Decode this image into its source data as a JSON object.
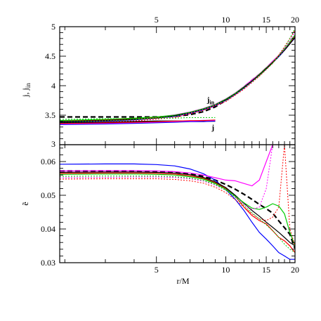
{
  "chart_data": [
    {
      "type": "line",
      "panel": "top",
      "ylabel": "j, j_in",
      "ylabel_main": "j, j",
      "ylabel_sub": "in",
      "xscale": "log",
      "xlim": [
        1.9,
        20
      ],
      "ylim": [
        3,
        5
      ],
      "xticks": [
        5,
        10,
        15,
        20
      ],
      "xtick_labels": [
        "5",
        "10",
        "15",
        "20"
      ],
      "yticks": [
        3,
        3.5,
        4,
        4.5,
        5
      ],
      "ytick_labels": [
        "3",
        "3.5",
        "4",
        "4.5",
        "5"
      ],
      "annotations": [
        {
          "text_main": "j",
          "text_sub": "in",
          "x": 8.6,
          "y": 3.72
        },
        {
          "text_main": "j",
          "text_sub": "",
          "x": 8.8,
          "y": 3.25
        }
      ],
      "series": [
        {
          "color": "#000000",
          "dash": "7,4",
          "width": 2.2,
          "x": [
            1.9,
            3,
            4,
            5,
            6,
            7,
            8,
            9,
            10,
            11,
            12,
            13,
            14,
            15,
            16,
            17,
            18,
            19,
            20
          ],
          "y": [
            3.47,
            3.47,
            3.47,
            3.47,
            3.48,
            3.51,
            3.56,
            3.64,
            3.75,
            3.86,
            3.98,
            4.09,
            4.19,
            4.3,
            4.4,
            4.5,
            4.61,
            4.72,
            4.83
          ]
        },
        {
          "color": "#ff00ff",
          "dash": "",
          "width": 2.0,
          "x": [
            1.9,
            3,
            4,
            5,
            6,
            7,
            8,
            9,
            10,
            11,
            12,
            13,
            14,
            15,
            16,
            17,
            18,
            19,
            20
          ],
          "y": [
            3.39,
            3.41,
            3.43,
            3.46,
            3.5,
            3.55,
            3.61,
            3.68,
            3.77,
            3.87,
            3.98,
            4.09,
            4.19,
            4.3,
            4.41,
            4.51,
            4.62,
            4.73,
            4.85
          ]
        },
        {
          "color": "#ff0000",
          "dash": "",
          "width": 1.2,
          "x": [
            1.9,
            3,
            4,
            5,
            6,
            7,
            8,
            9,
            10,
            11,
            12,
            13,
            14,
            15,
            16,
            17,
            18,
            19,
            20
          ],
          "y": [
            3.4,
            3.42,
            3.44,
            3.46,
            3.49,
            3.54,
            3.6,
            3.67,
            3.76,
            3.86,
            3.97,
            4.08,
            4.19,
            4.3,
            4.4,
            4.5,
            4.61,
            4.72,
            4.83
          ]
        },
        {
          "color": "#0000ff",
          "dash": "",
          "width": 1.2,
          "x": [
            1.9,
            3,
            4,
            5,
            6,
            7,
            8,
            9,
            10,
            11,
            12,
            13,
            14,
            15,
            16,
            17,
            18,
            19,
            20
          ],
          "y": [
            3.38,
            3.4,
            3.42,
            3.45,
            3.48,
            3.53,
            3.59,
            3.66,
            3.75,
            3.85,
            3.96,
            4.07,
            4.18,
            4.28,
            4.39,
            4.49,
            4.6,
            4.71,
            4.81
          ]
        },
        {
          "color": "#00cc00",
          "dash": "",
          "width": 1.2,
          "x": [
            1.9,
            3,
            4,
            5,
            6,
            7,
            8,
            9,
            10,
            11,
            12,
            13,
            14,
            15,
            16,
            17,
            18,
            19,
            20
          ],
          "y": [
            3.41,
            3.43,
            3.45,
            3.47,
            3.5,
            3.55,
            3.61,
            3.68,
            3.77,
            3.87,
            3.98,
            4.08,
            4.19,
            4.3,
            4.4,
            4.51,
            4.62,
            4.74,
            4.86
          ]
        },
        {
          "color": "#000000",
          "dash": "",
          "width": 1.2,
          "x": [
            1.9,
            3,
            4,
            5,
            6,
            7,
            8,
            9,
            10,
            11,
            12,
            13,
            14,
            15,
            16,
            17,
            18,
            19,
            20
          ],
          "y": [
            3.39,
            3.41,
            3.43,
            3.45,
            3.49,
            3.54,
            3.6,
            3.67,
            3.76,
            3.86,
            3.97,
            4.08,
            4.18,
            4.29,
            4.39,
            4.5,
            4.6,
            4.71,
            4.82
          ]
        },
        {
          "color": "#ff00ff",
          "dash": "2,2",
          "width": 1.0,
          "x": [
            1.9,
            4,
            6,
            8,
            10,
            12,
            14,
            16,
            17,
            18,
            19,
            20
          ],
          "y": [
            3.37,
            3.41,
            3.47,
            3.59,
            3.74,
            3.95,
            4.17,
            4.38,
            4.5,
            4.62,
            4.76,
            4.92
          ]
        },
        {
          "color": "#ff0000",
          "dash": "2,2",
          "width": 1.0,
          "x": [
            1.9,
            4,
            6,
            8,
            10,
            12,
            14,
            16,
            17,
            18,
            19,
            20
          ],
          "y": [
            3.36,
            3.4,
            3.46,
            3.58,
            3.73,
            3.94,
            4.16,
            4.38,
            4.52,
            4.66,
            4.8,
            4.94
          ]
        },
        {
          "color": "#00cc00",
          "dash": "2,2",
          "width": 1.0,
          "x": [
            1.9,
            4,
            6,
            8,
            10,
            12,
            14,
            16,
            17,
            18,
            19,
            20
          ],
          "y": [
            3.38,
            3.42,
            3.48,
            3.6,
            3.75,
            3.96,
            4.17,
            4.38,
            4.5,
            4.64,
            4.8,
            4.97
          ]
        },
        {
          "color": "#000000",
          "dash": "",
          "width": 1.6,
          "x": [
            1.9,
            3,
            4,
            5,
            6,
            7,
            8,
            9
          ],
          "y": [
            3.37,
            3.38,
            3.39,
            3.4,
            3.4,
            3.4,
            3.4,
            3.4
          ]
        },
        {
          "color": "#ff00ff",
          "dash": "",
          "width": 1.6,
          "x": [
            1.9,
            3,
            4,
            5,
            6,
            7,
            8,
            9
          ],
          "y": [
            3.35,
            3.36,
            3.37,
            3.38,
            3.39,
            3.4,
            3.41,
            3.41
          ]
        },
        {
          "color": "#ff0000",
          "dash": "",
          "width": 1.0,
          "x": [
            1.9,
            3,
            4,
            5,
            6,
            7,
            8,
            9
          ],
          "y": [
            3.36,
            3.37,
            3.38,
            3.39,
            3.4,
            3.41,
            3.41,
            3.42
          ]
        },
        {
          "color": "#0000ff",
          "dash": "",
          "width": 1.0,
          "x": [
            1.9,
            3,
            4,
            5,
            6,
            7,
            8,
            9
          ],
          "y": [
            3.34,
            3.35,
            3.36,
            3.37,
            3.38,
            3.39,
            3.39,
            3.4
          ]
        },
        {
          "color": "#00cc00",
          "dash": "2,2",
          "width": 1.0,
          "x": [
            1.9,
            3,
            4,
            5,
            6,
            7,
            8,
            9
          ],
          "y": [
            3.43,
            3.44,
            3.44,
            3.45,
            3.45,
            3.46,
            3.46,
            3.46
          ]
        }
      ]
    },
    {
      "type": "line",
      "panel": "bottom",
      "xlabel": "r/M",
      "ylabel": "ẽ",
      "xscale": "log",
      "xlim": [
        1.9,
        20
      ],
      "ylim": [
        0.03,
        0.065
      ],
      "xticks": [
        5,
        10,
        15,
        20
      ],
      "xtick_labels": [
        "5",
        "10",
        "15",
        "20"
      ],
      "yticks": [
        0.03,
        0.04,
        0.05,
        0.06
      ],
      "ytick_labels": [
        "0.03",
        "0.04",
        "0.05",
        "0.06"
      ],
      "series": [
        {
          "color": "#000000",
          "dash": "7,4",
          "width": 2.2,
          "x": [
            1.9,
            3,
            4,
            5,
            6,
            7,
            8,
            9,
            10,
            11,
            12,
            13,
            14,
            15,
            16,
            17,
            18,
            19,
            20
          ],
          "y": [
            0.0572,
            0.0572,
            0.0572,
            0.0571,
            0.0569,
            0.0564,
            0.0556,
            0.0545,
            0.0532,
            0.0518,
            0.0503,
            0.0488,
            0.0473,
            0.046,
            0.0447,
            0.0424,
            0.0404,
            0.0384,
            0.0342
          ]
        },
        {
          "color": "#0000ff",
          "dash": "",
          "width": 1.2,
          "x": [
            1.9,
            3,
            4,
            5,
            6,
            7,
            8,
            9,
            10,
            11,
            12,
            13,
            14,
            15,
            16,
            17,
            18,
            19,
            20
          ],
          "y": [
            0.0592,
            0.0593,
            0.0593,
            0.0591,
            0.0587,
            0.0578,
            0.0564,
            0.0545,
            0.0517,
            0.0488,
            0.0455,
            0.042,
            0.039,
            0.037,
            0.035,
            0.033,
            0.032,
            0.031,
            0.031
          ]
        },
        {
          "color": "#ff0000",
          "dash": "",
          "width": 1.2,
          "x": [
            1.9,
            3,
            4,
            5,
            6,
            7,
            8,
            9,
            10,
            11,
            12,
            13,
            14,
            15,
            16,
            17,
            18,
            19,
            20
          ],
          "y": [
            0.0565,
            0.0566,
            0.0566,
            0.0565,
            0.0563,
            0.0558,
            0.055,
            0.0537,
            0.052,
            0.0497,
            0.0465,
            0.044,
            0.0425,
            0.0415,
            0.0395,
            0.0375,
            0.0365,
            0.035,
            0.033
          ]
        },
        {
          "color": "#000000",
          "dash": "",
          "width": 1.2,
          "x": [
            1.9,
            3,
            4,
            5,
            6,
            7,
            8,
            9,
            10,
            11,
            12,
            13,
            14,
            15,
            16,
            17,
            18,
            19,
            20
          ],
          "y": [
            0.0568,
            0.0569,
            0.0569,
            0.0568,
            0.0566,
            0.0561,
            0.0553,
            0.054,
            0.0523,
            0.05,
            0.0476,
            0.0455,
            0.0438,
            0.042,
            0.0405,
            0.039,
            0.0375,
            0.036,
            0.035
          ]
        },
        {
          "color": "#00cc00",
          "dash": "",
          "width": 1.2,
          "x": [
            1.9,
            3,
            4,
            5,
            6,
            7,
            8,
            9,
            10,
            11,
            12,
            13,
            14,
            15,
            16,
            17,
            18,
            19,
            20
          ],
          "y": [
            0.0562,
            0.0563,
            0.0563,
            0.0562,
            0.056,
            0.0555,
            0.0548,
            0.0535,
            0.0518,
            0.0497,
            0.0478,
            0.0462,
            0.0458,
            0.0465,
            0.0475,
            0.0468,
            0.0445,
            0.039,
            0.035
          ]
        },
        {
          "color": "#ff00ff",
          "dash": "",
          "width": 1.2,
          "x": [
            1.9,
            3,
            4,
            5,
            6,
            7,
            8,
            9,
            10,
            11,
            12,
            13,
            14,
            15,
            16
          ],
          "y": [
            0.0572,
            0.0573,
            0.0573,
            0.0572,
            0.057,
            0.0566,
            0.056,
            0.0552,
            0.0545,
            0.0543,
            0.0535,
            0.0528,
            0.0545,
            0.06,
            0.065
          ]
        },
        {
          "color": "#ff00ff",
          "dash": "2,2",
          "width": 1.0,
          "x": [
            1.9,
            3,
            4,
            5,
            6,
            7,
            8,
            9,
            10,
            11,
            12,
            13,
            14,
            15,
            16
          ],
          "y": [
            0.0552,
            0.0553,
            0.0554,
            0.0554,
            0.0553,
            0.0549,
            0.0542,
            0.053,
            0.0515,
            0.0495,
            0.0474,
            0.0458,
            0.0465,
            0.052,
            0.065
          ]
        },
        {
          "color": "#ff0000",
          "dash": "2,2",
          "width": 1.0,
          "x": [
            1.9,
            3,
            4,
            5,
            6,
            7,
            8,
            9,
            10,
            11,
            12,
            13,
            14,
            15,
            16,
            17,
            18,
            19,
            20
          ],
          "y": [
            0.0548,
            0.0549,
            0.0549,
            0.0549,
            0.0547,
            0.0543,
            0.0536,
            0.0524,
            0.0508,
            0.0487,
            0.0465,
            0.0445,
            0.043,
            0.0425,
            0.0435,
            0.0465,
            0.065,
            0.04,
            0.035
          ]
        },
        {
          "color": "#00cc00",
          "dash": "2,2",
          "width": 1.0,
          "x": [
            1.9,
            3,
            4,
            5,
            6,
            7,
            8,
            9,
            10,
            11,
            12,
            13,
            14,
            15,
            16,
            17,
            18,
            19,
            20
          ],
          "y": [
            0.0556,
            0.0557,
            0.0557,
            0.0557,
            0.0555,
            0.0551,
            0.0544,
            0.0532,
            0.0515,
            0.0494,
            0.047,
            0.0448,
            0.043,
            0.0412,
            0.0395,
            0.0375,
            0.0355,
            0.034,
            0.033
          ]
        }
      ]
    }
  ]
}
